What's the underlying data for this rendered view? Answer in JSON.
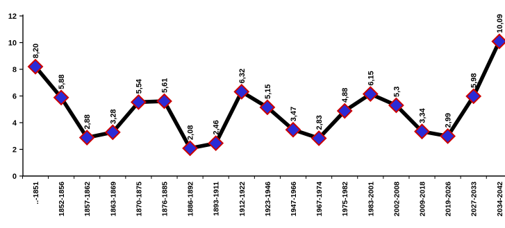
{
  "chart_data": {
    "type": "line",
    "title": "",
    "xlabel": "",
    "ylabel": "",
    "ylim": [
      0,
      12
    ],
    "yticks": [
      0,
      2,
      4,
      6,
      8,
      10,
      12
    ],
    "grid": false,
    "legend": "none",
    "categories": [
      "..-1851",
      "1852-1856",
      "1857-1862",
      "1863-1869",
      "1870-1875",
      "1876-1885",
      "1886-1892",
      "1893-1911",
      "1912-1922",
      "1923-1946",
      "1947-1966",
      "1967-1974",
      "1975-1982",
      "1983-2001",
      "2002-2008",
      "2009-2018",
      "2019-2026",
      "2027-2033",
      "2034-2042"
    ],
    "series": [
      {
        "values": [
          8.2,
          5.88,
          2.88,
          3.28,
          5.54,
          5.61,
          2.08,
          2.46,
          6.32,
          5.15,
          3.47,
          2.83,
          4.88,
          6.15,
          5.3,
          3.34,
          2.99,
          5.98,
          10.09
        ],
        "labels": [
          "8,20",
          "5,88",
          "2,88",
          "3,28",
          "5,54",
          "5,61",
          "2,08",
          "2,46",
          "6,32",
          "5,15",
          "3,47",
          "2,83",
          "4,88",
          "6,15",
          "5,3",
          "3,34",
          "2,99",
          "5,98",
          "10,09"
        ],
        "line_color": "#000000",
        "marker_fill": "#2b2bd6",
        "marker_edge": "#cc0000"
      }
    ]
  }
}
